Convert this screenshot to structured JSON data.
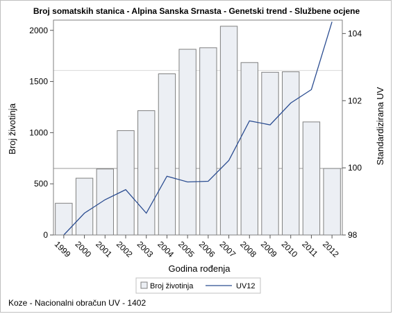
{
  "title": "Broj somatskih stanica - Alpina Sanska Srnasta - Genetski trend - Službene ocjene",
  "footnote": "Koze - Nacionalni obračun UV - 1402",
  "chart_data": {
    "type": "bar",
    "categories": [
      "1999",
      "2000",
      "2001",
      "2002",
      "2003",
      "2004",
      "2005",
      "2006",
      "2007",
      "2008",
      "2009",
      "2010",
      "2011",
      "2012"
    ],
    "xlabel": "Godina rođenja",
    "ylabel": "Broj životinja",
    "y2label": "Standardizirana UV",
    "ylim": [
      0,
      2100
    ],
    "y2lim": [
      98,
      104.4
    ],
    "yticks": [
      0,
      500,
      1000,
      1500,
      2000
    ],
    "y2ticks": [
      98,
      100,
      102,
      104
    ],
    "reference_lines": {
      "y": 650,
      "y2": 102.9
    },
    "series": [
      {
        "name": "Broj životinja",
        "type": "bar",
        "axis": "left",
        "values": [
          310,
          555,
          645,
          1020,
          1215,
          1575,
          1815,
          1830,
          2040,
          1685,
          1590,
          1595,
          1105,
          650
        ]
      },
      {
        "name": "UV12",
        "type": "line",
        "axis": "right",
        "values": [
          98.0,
          98.65,
          99.05,
          99.35,
          98.65,
          99.75,
          99.58,
          99.6,
          100.22,
          101.4,
          101.28,
          101.93,
          102.33,
          104.35
        ]
      }
    ],
    "colors": {
      "bar_fill": "#eceff4",
      "bar_stroke": "#7f7f7f",
      "line": "#2b4d91",
      "grid": "#c8c8c8"
    },
    "grid": false,
    "legend": "bottom"
  }
}
